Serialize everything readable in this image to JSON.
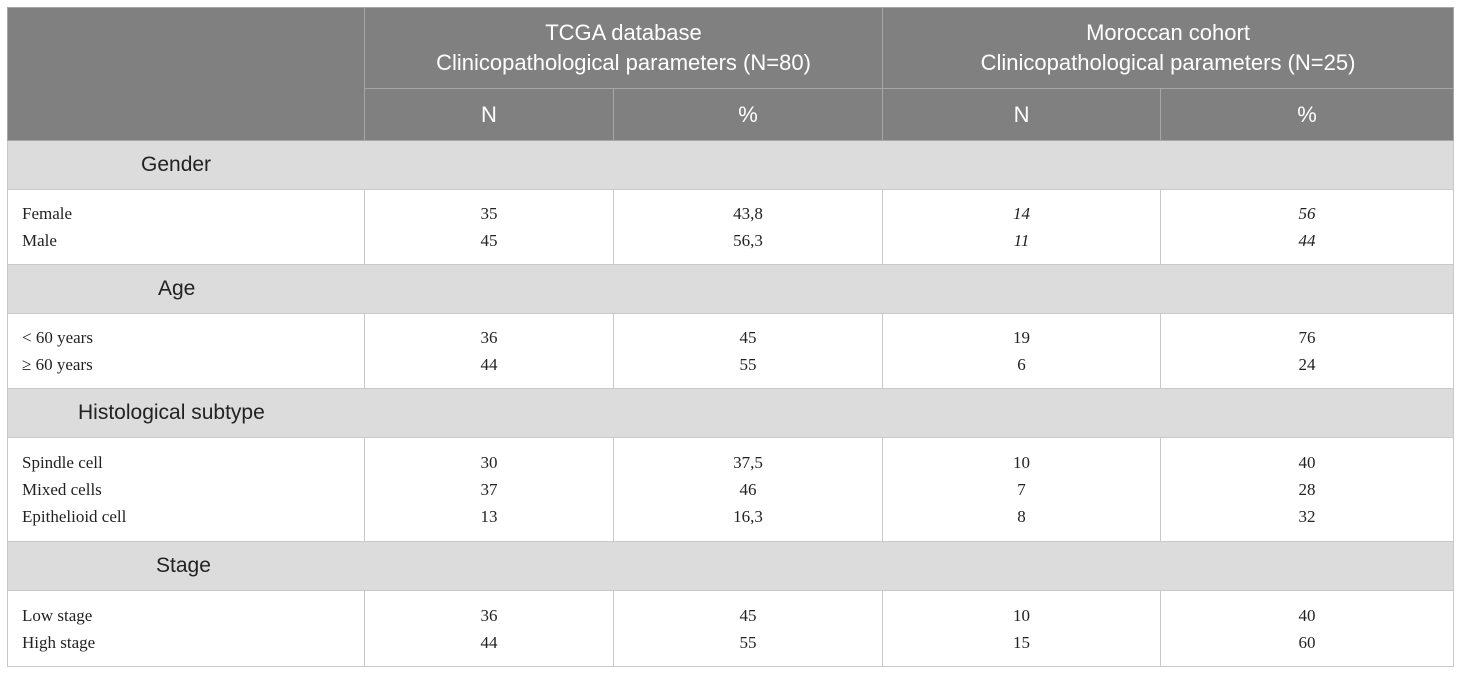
{
  "header": {
    "tcga": {
      "line1": "TCGA database",
      "line2": "Clinicopathological parameters (N=80)"
    },
    "moroccan": {
      "line1": "Moroccan cohort",
      "line2": "Clinicopathological parameters (N=25)"
    },
    "n_label": "N",
    "pct_label": "%"
  },
  "sections": [
    {
      "title": "Gender",
      "rows": [
        {
          "label": "Female",
          "tcga_n": "35",
          "tcga_pct": "43,8",
          "mor_n": "14",
          "mor_pct": "56"
        },
        {
          "label": "Male",
          "tcga_n": "45",
          "tcga_pct": "56,3",
          "mor_n": "11",
          "mor_pct": "44"
        }
      ]
    },
    {
      "title": "Age",
      "rows": [
        {
          "label": "< 60 years",
          "tcga_n": "36",
          "tcga_pct": "45",
          "mor_n": "19",
          "mor_pct": "76"
        },
        {
          "label": "≥ 60 years",
          "tcga_n": "44",
          "tcga_pct": "55",
          "mor_n": "6",
          "mor_pct": "24"
        }
      ]
    },
    {
      "title": "Histological subtype",
      "rows": [
        {
          "label": "Spindle cell",
          "tcga_n": "30",
          "tcga_pct": "37,5",
          "mor_n": "10",
          "mor_pct": "40"
        },
        {
          "label": "Mixed cells",
          "tcga_n": "37",
          "tcga_pct": "46",
          "mor_n": "7",
          "mor_pct": "28"
        },
        {
          "label": "Epithelioid cell",
          "tcga_n": "13",
          "tcga_pct": "16,3",
          "mor_n": "8",
          "mor_pct": "32"
        }
      ]
    },
    {
      "title": "Stage",
      "rows": [
        {
          "label": "Low stage",
          "tcga_n": "36",
          "tcga_pct": "45",
          "mor_n": "10",
          "mor_pct": "40"
        },
        {
          "label": "High stage",
          "tcga_n": "44",
          "tcga_pct": "55",
          "mor_n": "15",
          "mor_pct": "60"
        }
      ]
    }
  ]
}
